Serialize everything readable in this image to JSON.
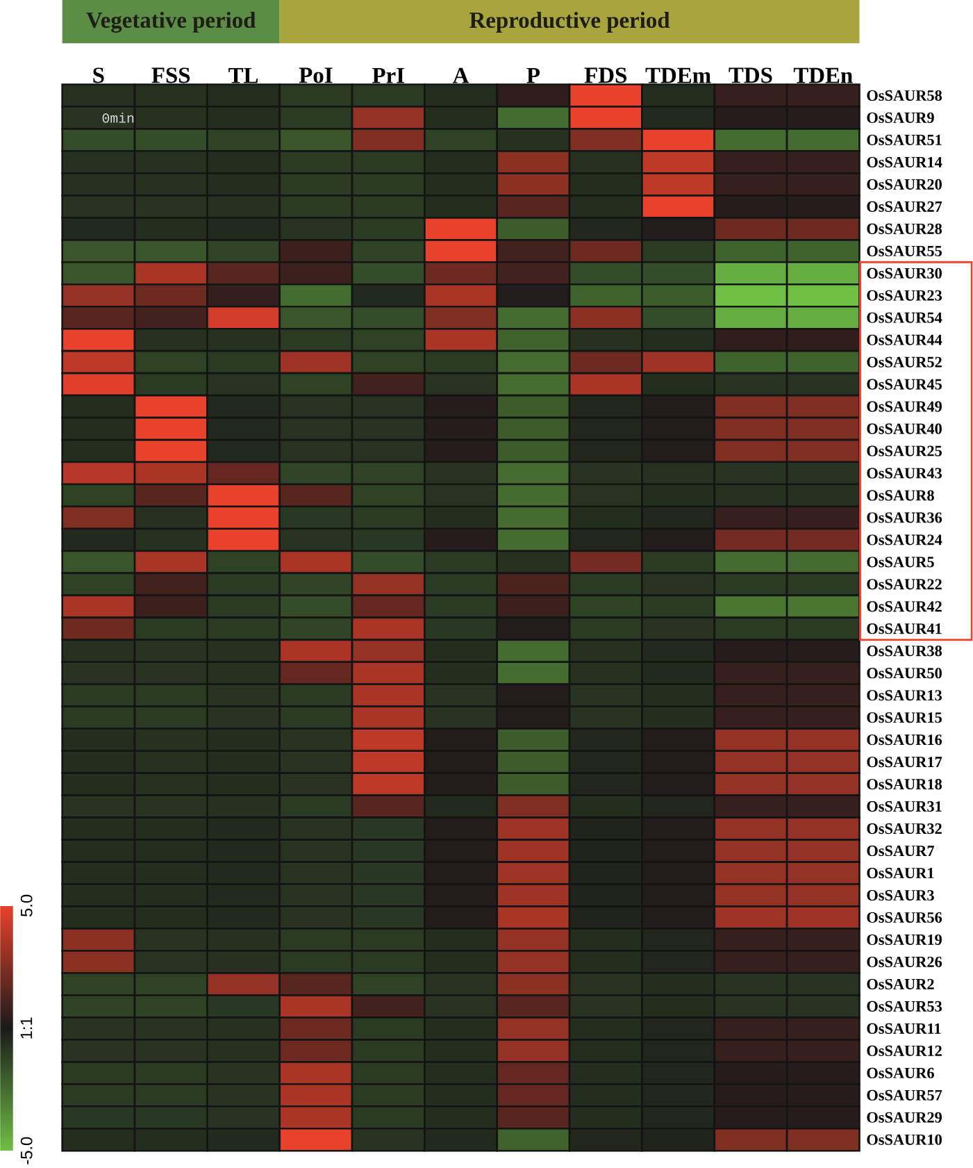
{
  "chart_data": {
    "type": "heatmap",
    "categories": [
      "S",
      "FSS",
      "TL",
      "PoI",
      "PrI",
      "A",
      "P",
      "FDS",
      "TDEm",
      "TDS",
      "TDEn"
    ],
    "y_categories": [
      "OsSAUR58",
      "OsSAUR9",
      "OsSAUR51",
      "OsSAUR14",
      "OsSAUR20",
      "OsSAUR27",
      "OsSAUR28",
      "OsSAUR55",
      "OsSAUR30",
      "OsSAUR23",
      "OsSAUR54",
      "OsSAUR44",
      "OsSAUR52",
      "OsSAUR45",
      "OsSAUR49",
      "OsSAUR40",
      "OsSAUR25",
      "OsSAUR43",
      "OsSAUR8",
      "OsSAUR36",
      "OsSAUR24",
      "OsSAUR5",
      "OsSAUR22",
      "OsSAUR42",
      "OsSAUR41",
      "OsSAUR38",
      "OsSAUR50",
      "OsSAUR13",
      "OsSAUR15",
      "OsSAUR16",
      "OsSAUR17",
      "OsSAUR18",
      "OsSAUR31",
      "OsSAUR32",
      "OsSAUR7",
      "OsSAUR1",
      "OsSAUR3",
      "OsSAUR56",
      "OsSAUR19",
      "OsSAUR26",
      "OsSAUR2",
      "OsSAUR53",
      "OsSAUR11",
      "OsSAUR12",
      "OsSAUR6",
      "OsSAUR57",
      "OsSAUR29",
      "OsSAUR10"
    ],
    "cells": [
      [
        -0.7,
        -0.7,
        -0.6,
        -1,
        -1,
        -0.6,
        0.5,
        5,
        -0.6,
        0.7,
        0.7
      ],
      [
        -0.8,
        -0.7,
        -0.6,
        -1,
        3,
        -0.6,
        -2.5,
        5,
        -0.5,
        0.3,
        0.3
      ],
      [
        -1.5,
        -1.5,
        -1.2,
        -1.8,
        2.5,
        -1.2,
        -0.7,
        2.5,
        5,
        -2.5,
        -2.5
      ],
      [
        -0.7,
        -0.7,
        -0.6,
        -1,
        -1,
        -0.6,
        2.8,
        -0.7,
        4,
        0.7,
        0.7
      ],
      [
        -0.7,
        -0.7,
        -0.6,
        -1,
        -1,
        -0.6,
        2.8,
        -0.6,
        4,
        0.7,
        0.7
      ],
      [
        -0.8,
        -0.8,
        -0.7,
        -1,
        -1,
        -0.6,
        1.5,
        -0.6,
        5,
        0.3,
        0.3
      ],
      [
        -0.5,
        -0.6,
        -0.5,
        -0.8,
        -1,
        5,
        -2,
        -0.4,
        0.2,
        2,
        2
      ],
      [
        -1.8,
        -1.8,
        -1.3,
        0.8,
        -1.2,
        5,
        1,
        2,
        -1,
        -2.2,
        -2.2
      ],
      [
        -1.8,
        3.5,
        1.5,
        0.8,
        -1.5,
        2,
        1,
        -1.5,
        -1.5,
        -4.5,
        -4.5
      ],
      [
        3,
        2,
        0.6,
        -2.5,
        -0.5,
        3.5,
        0.2,
        -2.2,
        -2,
        -5,
        -5
      ],
      [
        1.5,
        1,
        4.5,
        -1.8,
        -1.5,
        2.5,
        -2.5,
        2.8,
        -1.5,
        -4.5,
        -4.5
      ],
      [
        5,
        -0.7,
        -0.7,
        -1,
        -1.2,
        3.5,
        -2.2,
        -0.7,
        -0.6,
        0.5,
        0.5
      ],
      [
        4,
        -1.2,
        -1,
        3.2,
        -1.2,
        -1,
        -2.5,
        2,
        3.2,
        -2.2,
        -2.2
      ],
      [
        4.8,
        -1,
        -0.8,
        -1.2,
        1,
        -0.8,
        -2.5,
        3.5,
        -0.6,
        -0.8,
        -0.8
      ],
      [
        -0.6,
        5,
        -0.5,
        -0.8,
        -0.8,
        0.3,
        -2,
        -0.4,
        0.2,
        2.5,
        2.5
      ],
      [
        -0.6,
        5,
        -0.5,
        -0.8,
        -0.8,
        0.3,
        -2,
        -0.4,
        0.2,
        2.5,
        2.5
      ],
      [
        -0.6,
        5,
        -0.5,
        -0.8,
        -0.8,
        0.3,
        -2,
        -0.4,
        0.2,
        2.5,
        2.5
      ],
      [
        3.8,
        3.5,
        1.8,
        -1.3,
        -1.2,
        -0.8,
        -2.5,
        -0.8,
        -0.7,
        -0.8,
        -0.8
      ],
      [
        -1.2,
        1.5,
        5,
        1.5,
        -1.2,
        -0.8,
        -2.5,
        -0.8,
        -0.6,
        -0.7,
        -0.7
      ],
      [
        2.5,
        -0.7,
        5,
        -0.9,
        -1,
        -0.6,
        -2.5,
        -0.6,
        -0.4,
        0.7,
        0.7
      ],
      [
        -0.5,
        -0.7,
        5,
        -0.8,
        -0.9,
        0.3,
        -2.5,
        -0.4,
        0.2,
        2.2,
        2.2
      ],
      [
        -1.8,
        3.5,
        -1.2,
        3.5,
        -1.5,
        -1,
        -0.7,
        2.2,
        -1,
        -2.5,
        -2.5
      ],
      [
        -1.2,
        1,
        -1,
        -1.3,
        3,
        -1,
        1.2,
        -1,
        -0.8,
        -1,
        -1
      ],
      [
        3.5,
        0.8,
        -1,
        -1.5,
        1.8,
        -1,
        0.8,
        -1.2,
        -1,
        -2.8,
        -2.8
      ],
      [
        2,
        -1,
        -1,
        -1.3,
        3.5,
        -0.9,
        0.2,
        -1,
        -0.8,
        -1,
        -1
      ],
      [
        -0.7,
        -0.8,
        -0.7,
        3.5,
        3,
        -0.6,
        -2.5,
        -0.7,
        -0.5,
        0.3,
        0.3
      ],
      [
        -0.8,
        -0.8,
        -0.7,
        1.8,
        3.5,
        -0.6,
        -2.5,
        -0.7,
        -0.5,
        0.7,
        0.7
      ],
      [
        -1,
        -1,
        -0.8,
        -1,
        3.5,
        -0.8,
        0.2,
        -0.8,
        -0.6,
        0.7,
        0.7
      ],
      [
        -1,
        -1,
        -0.8,
        -1,
        3.5,
        -0.8,
        0.2,
        -0.8,
        -0.6,
        0.7,
        0.7
      ],
      [
        -0.6,
        -0.7,
        -0.6,
        -0.8,
        4,
        0.2,
        -2,
        -0.4,
        0.2,
        3,
        3
      ],
      [
        -0.6,
        -0.7,
        -0.6,
        -0.8,
        4,
        0.2,
        -2,
        -0.4,
        0.2,
        3,
        3
      ],
      [
        -0.6,
        -0.7,
        -0.6,
        -0.8,
        4,
        0.2,
        -2,
        -0.4,
        0.2,
        3,
        3
      ],
      [
        -0.8,
        -0.8,
        -0.7,
        -1,
        1.5,
        -0.5,
        2.5,
        -0.6,
        -0.4,
        0.7,
        0.7
      ],
      [
        -0.6,
        -0.6,
        -0.5,
        -0.8,
        -0.9,
        0.2,
        3.2,
        -0.3,
        0.2,
        3,
        3
      ],
      [
        -0.6,
        -0.6,
        -0.5,
        -0.8,
        -0.9,
        0.2,
        3.2,
        -0.3,
        0.2,
        3,
        3
      ],
      [
        -0.6,
        -0.6,
        -0.5,
        -0.8,
        -0.9,
        0.2,
        3.2,
        -0.3,
        0.2,
        3,
        3
      ],
      [
        -0.6,
        -0.6,
        -0.5,
        -0.8,
        -0.9,
        0.2,
        3.2,
        -0.3,
        0.2,
        3,
        3
      ],
      [
        -0.6,
        -0.6,
        -0.5,
        -0.8,
        -0.9,
        0.2,
        3.5,
        -0.3,
        0.2,
        3.2,
        3.2
      ],
      [
        2.8,
        -0.8,
        -0.7,
        -1,
        -1,
        -0.6,
        3,
        -0.6,
        -0.4,
        0.7,
        0.7
      ],
      [
        2.8,
        -0.8,
        -0.7,
        -1,
        -1,
        -0.6,
        3,
        -0.6,
        -0.4,
        0.7,
        0.7
      ],
      [
        -1.2,
        -1.2,
        3,
        1.5,
        -1.2,
        -0.8,
        2.8,
        -0.8,
        -0.6,
        -0.8,
        -0.8
      ],
      [
        -1.2,
        -1.2,
        -0.9,
        3.5,
        1,
        -0.8,
        1.5,
        -0.8,
        -0.6,
        -0.8,
        -0.8
      ],
      [
        -0.8,
        -0.8,
        -0.7,
        2,
        -1,
        -0.6,
        3,
        -0.6,
        -0.4,
        0.7,
        0.7
      ],
      [
        -0.8,
        -0.8,
        -0.7,
        2,
        -1,
        -0.6,
        3,
        -0.6,
        -0.4,
        0.7,
        0.7
      ],
      [
        -1,
        -1,
        -0.8,
        3.5,
        -1,
        -0.6,
        1.8,
        -0.6,
        -0.4,
        0.3,
        0.3
      ],
      [
        -1,
        -1,
        -0.8,
        3.5,
        -1,
        -0.6,
        1.8,
        -0.6,
        -0.4,
        0.3,
        0.3
      ],
      [
        -0.9,
        -0.9,
        -0.8,
        3.5,
        -1,
        -0.6,
        1.5,
        -0.6,
        -0.4,
        0.3,
        0.3
      ],
      [
        -0.6,
        -0.6,
        -0.5,
        5,
        -0.8,
        -0.5,
        -2.2,
        -0.4,
        -0.3,
        2.5,
        2.5
      ]
    ],
    "clim": [
      -5,
      5
    ],
    "cticks": [
      {
        "value": -5,
        "label": "-5.0"
      },
      {
        "value": 0,
        "label": "1:1"
      },
      {
        "value": 5,
        "label": "5.0"
      }
    ],
    "annotations": [
      "Vegetative period",
      "Reproductive period",
      "0min"
    ]
  }
}
